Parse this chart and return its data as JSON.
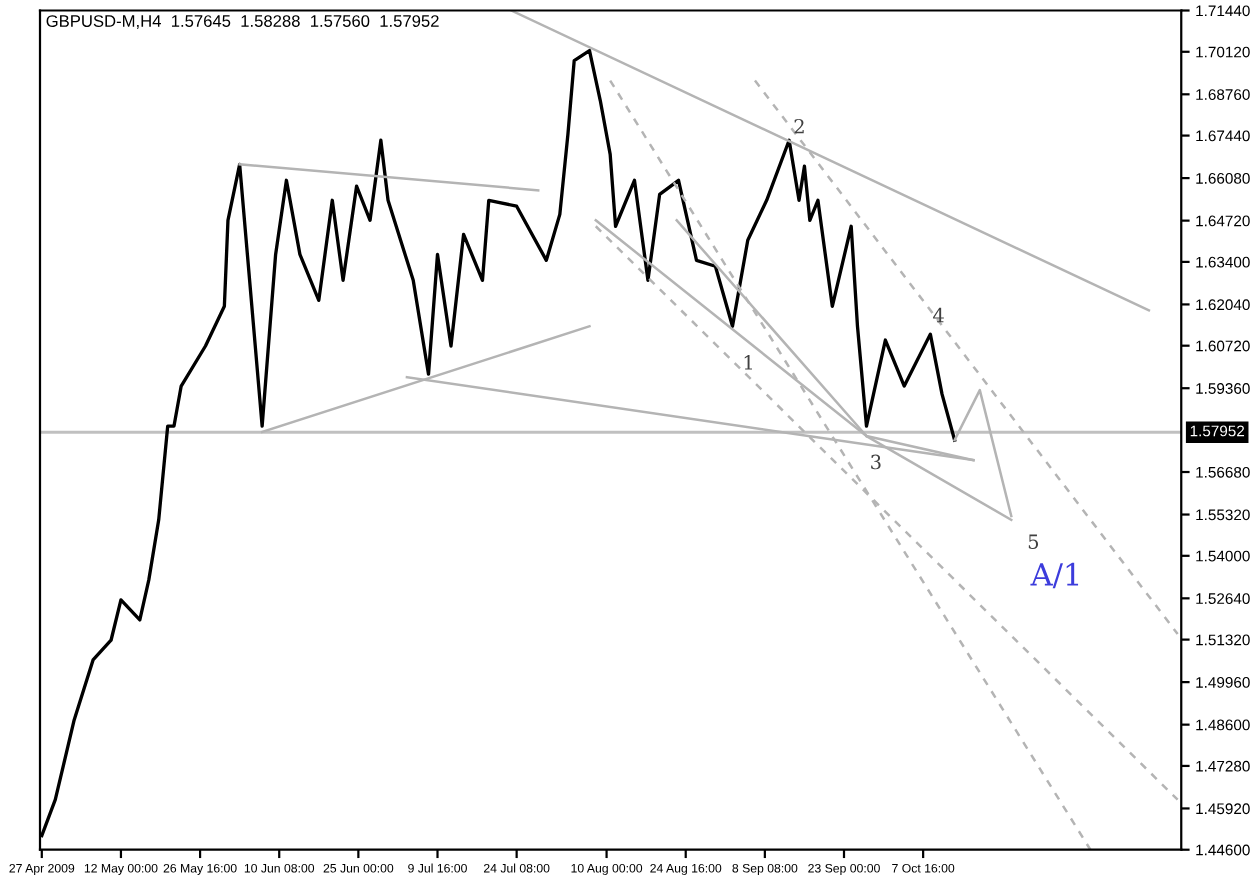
{
  "chart_data": {
    "type": "line",
    "title": "GBPUSD-M,H4  1.57645  1.58288  1.57560  1.57952",
    "series": [
      {
        "color": "#000000",
        "x": [
          "2009-04-27T08:00",
          "2009-04-29T20:00",
          "2009-05-03T08:00",
          "2009-05-06T20:00",
          "2009-05-10T04:00",
          "2009-05-12T00:00",
          "2009-05-15T12:00",
          "2009-05-17T04:00",
          "2009-05-19T00:00",
          "2009-05-20T16:00",
          "2009-05-21T20:00",
          "2009-05-23T04:00",
          "2009-05-27T16:00",
          "2009-05-31T04:00",
          "2009-05-31T20:00",
          "2009-06-03T00:00",
          "2009-06-07T04:00",
          "2009-06-09T16:00",
          "2009-06-11T16:00",
          "2009-06-14T04:00",
          "2009-06-17T16:00",
          "2009-06-20T04:00",
          "2009-06-22T04:00",
          "2009-06-24T16:00",
          "2009-06-27T04:00",
          "2009-06-29T04:00",
          "2009-06-30T12:00",
          "2009-07-05T04:00",
          "2009-07-08T00:00",
          "2009-07-09T16:00",
          "2009-07-12T04:00",
          "2009-07-14T12:00",
          "2009-07-18T00:00",
          "2009-07-19T04:00",
          "2009-07-24T08:00",
          "2009-07-29T20:00",
          "2009-08-01T08:00",
          "2009-08-02T20:00",
          "2009-08-04T00:00",
          "2009-08-06T20:00",
          "2009-08-08T20:00",
          "2009-08-10T16:00",
          "2009-08-11T16:00",
          "2009-08-15T04:00",
          "2009-08-17T16:00",
          "2009-08-19T20:00",
          "2009-08-23T08:00",
          "2009-08-26T16:00",
          "2009-08-30T04:00",
          "2009-09-02T08:00",
          "2009-09-05T04:00",
          "2009-09-08T16:00",
          "2009-09-12T20:00",
          "2009-09-14T16:00",
          "2009-09-15T16:00",
          "2009-09-16T16:00",
          "2009-09-18T04:00",
          "2009-09-20T20:00",
          "2009-09-24T08:00",
          "2009-09-25T12:00",
          "2009-09-27T04:00",
          "2009-09-30T16:00",
          "2009-10-04T04:00",
          "2009-10-09T00:00",
          "2009-10-11T04:00",
          "2009-10-13T12:00"
        ],
        "values": [
          1.4505,
          1.462,
          1.4875,
          1.5067,
          1.513,
          1.5259,
          1.5195,
          1.5323,
          1.5515,
          1.5815,
          1.5815,
          1.5943,
          1.6071,
          1.6198,
          1.6473,
          1.6652,
          1.5815,
          1.6364,
          1.6601,
          1.6364,
          1.6217,
          1.6537,
          1.6281,
          1.6582,
          1.6473,
          1.6729,
          1.6537,
          1.6281,
          1.5981,
          1.6364,
          1.6071,
          1.6428,
          1.6281,
          1.6537,
          1.6518,
          1.6345,
          1.6492,
          1.6748,
          1.6984,
          1.7016,
          1.6856,
          1.6684,
          1.6454,
          1.6601,
          1.6281,
          1.6556,
          1.6601,
          1.6345,
          1.6326,
          1.6134,
          1.6409,
          1.6537,
          1.6729,
          1.6537,
          1.6646,
          1.6473,
          1.6537,
          1.6198,
          1.6454,
          1.6134,
          1.5815,
          1.609,
          1.5943,
          1.6109,
          1.5917,
          1.577
        ]
      },
      {
        "type": "line",
        "color": "#b4b4b4",
        "line_style": "solid",
        "x": [
          "2009-06-03T00:00",
          "2009-07-28T08:00"
        ],
        "values": [
          1.6652,
          1.6569
        ]
      },
      {
        "type": "line",
        "color": "#b4b4b4",
        "line_style": "solid",
        "x": [
          "2009-06-07T04:00",
          "2009-08-06T20:00"
        ],
        "values": [
          1.5796,
          1.6134
        ]
      },
      {
        "type": "line",
        "color": "#b4b4b4",
        "line_style": "solid",
        "x": [
          "2009-07-04T00:00",
          "2009-10-17T00:00"
        ],
        "values": [
          1.5971,
          1.5706
        ]
      },
      {
        "type": "line",
        "color": "#b4b4b4",
        "line_style": "solid",
        "x": [
          "2009-07-23T08:00",
          "2009-11-18T12:00"
        ],
        "values": [
          1.7144,
          1.6185
        ]
      },
      {
        "type": "line",
        "color": "#b4b4b4",
        "line_style": "solid",
        "x": [
          "2009-08-08T00:00",
          "2009-09-27T04:00",
          "2009-10-24T00:00"
        ],
        "values": [
          1.6473,
          1.5783,
          1.5515
        ]
      },
      {
        "type": "line",
        "color": "#b4b4b4",
        "line_style": "solid",
        "x": [
          "2009-09-27T04:00",
          "2009-10-17T00:00"
        ],
        "values": [
          1.5783,
          1.5706
        ]
      },
      {
        "type": "line",
        "color": "#b4b4b4",
        "line_style": "solid",
        "x": [
          "2009-10-13T12:00",
          "2009-10-18T04:00",
          "2009-10-24T00:00"
        ],
        "values": [
          1.577,
          1.593,
          1.5527
        ]
      },
      {
        "type": "line",
        "color": "#b4b4b4",
        "line_style": "solid",
        "x": [
          "2009-08-23T00:00",
          "2009-09-27T04:00"
        ],
        "values": [
          1.6473,
          1.5783
        ]
      },
      {
        "type": "line",
        "color": "#b4b4b4",
        "line_style": "dashed",
        "x": [
          "2009-08-10T16:00",
          "2009-11-07T16:00"
        ],
        "values": [
          1.692,
          1.446
        ]
      },
      {
        "type": "line",
        "color": "#b4b4b4",
        "line_style": "dashed",
        "x": [
          "2009-09-06T12:00",
          "2009-11-23T20:00"
        ],
        "values": [
          1.692,
          1.515
        ]
      },
      {
        "type": "line",
        "color": "#b4b4b4",
        "line_style": "dashed",
        "x": [
          "2009-08-08T00:00",
          "2009-11-23T20:00"
        ],
        "values": [
          1.6454,
          1.462
        ]
      }
    ],
    "xlim": [
      "2009-04-27T00:00",
      "2009-11-24T12:00"
    ],
    "xticks": [
      {
        "value": "2009-04-27T08:00",
        "label": "27 Apr 2009"
      },
      {
        "value": "2009-05-12T00:00",
        "label": "12 May 00:00"
      },
      {
        "value": "2009-05-26T16:00",
        "label": "26 May 16:00"
      },
      {
        "value": "2009-06-10T08:00",
        "label": "10 Jun 08:00"
      },
      {
        "value": "2009-06-25T00:00",
        "label": "25 Jun 00:00"
      },
      {
        "value": "2009-07-09T16:00",
        "label": "9 Jul 16:00"
      },
      {
        "value": "2009-07-24T08:00",
        "label": "24 Jul 08:00"
      },
      {
        "value": "2009-08-10T00:00",
        "label": "10 Aug 00:00"
      },
      {
        "value": "2009-08-24T16:00",
        "label": "24 Aug 16:00"
      },
      {
        "value": "2009-09-08T08:00",
        "label": "8 Sep 08:00"
      },
      {
        "value": "2009-09-23T00:00",
        "label": "23 Sep 00:00"
      },
      {
        "value": "2009-10-07T16:00",
        "label": "7 Oct 16:00"
      }
    ],
    "ylim": [
      1.446,
      1.7144
    ],
    "yticks": [
      {
        "value": 1.446,
        "label": "1.44600"
      },
      {
        "value": 1.4592,
        "label": "1.45920"
      },
      {
        "value": 1.4728,
        "label": "1.47280"
      },
      {
        "value": 1.486,
        "label": "1.48600"
      },
      {
        "value": 1.4996,
        "label": "1.49960"
      },
      {
        "value": 1.5132,
        "label": "1.51320"
      },
      {
        "value": 1.5264,
        "label": "1.52640"
      },
      {
        "value": 1.54,
        "label": "1.54000"
      },
      {
        "value": 1.5532,
        "label": "1.55320"
      },
      {
        "value": 1.5668,
        "label": "1.56680"
      },
      {
        "value": 1.5936,
        "label": "1.59360"
      },
      {
        "value": 1.6072,
        "label": "1.60720"
      },
      {
        "value": 1.6204,
        "label": "1.62040"
      },
      {
        "value": 1.634,
        "label": "1.63400"
      },
      {
        "value": 1.6472,
        "label": "1.64720"
      },
      {
        "value": 1.6608,
        "label": "1.66080"
      },
      {
        "value": 1.6744,
        "label": "1.67440"
      },
      {
        "value": 1.6876,
        "label": "1.68760"
      },
      {
        "value": 1.7012,
        "label": "1.70120"
      },
      {
        "value": 1.7144,
        "label": "1.71440"
      }
    ],
    "ref_lines": [
      {
        "axis": "y",
        "value": 1.57952,
        "label": "1.57952",
        "color": "#c0c0c0"
      }
    ],
    "annotations": [
      {
        "text": "1",
        "x": "2009-09-04T04:00",
        "y": 1.6013
      },
      "2",
      "3",
      "4",
      "5",
      "A/1"
    ],
    "grid": false,
    "legend": false
  }
}
